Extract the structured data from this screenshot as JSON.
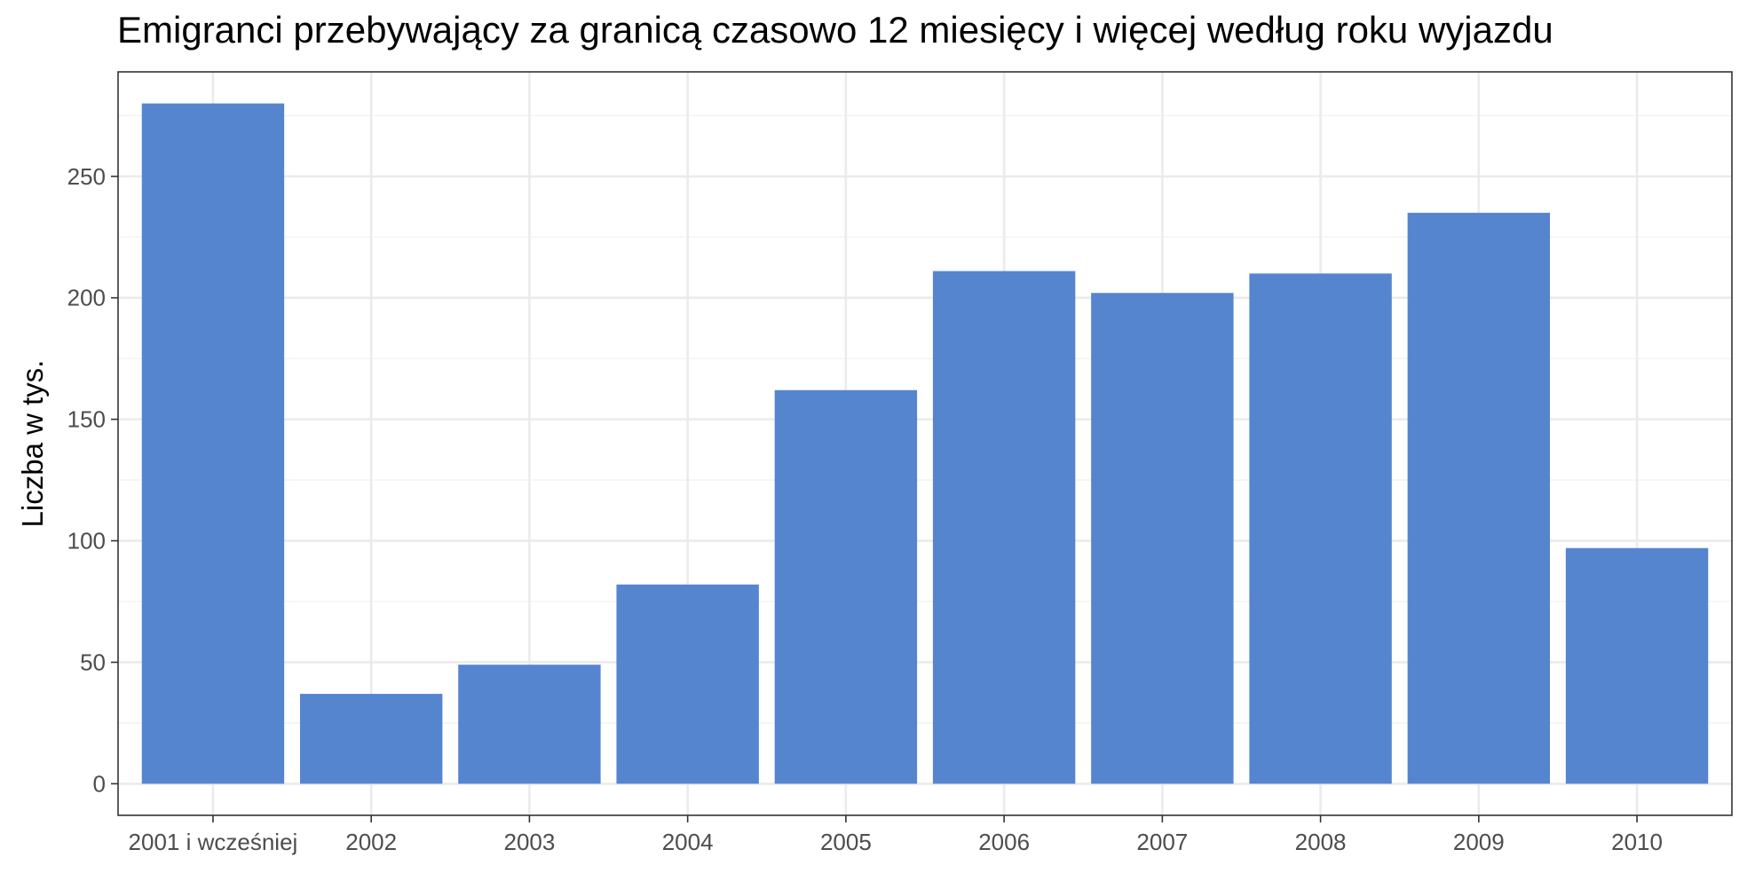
{
  "chart_data": {
    "type": "bar",
    "title": "Emigranci przebywający za granicą czasowo 12 miesięcy i więcej według roku wyjazdu",
    "xlabel": "",
    "ylabel": "Liczba w tys.",
    "categories": [
      "2001 i wcześniej",
      "2002",
      "2003",
      "2004",
      "2005",
      "2006",
      "2007",
      "2008",
      "2009",
      "2010"
    ],
    "values": [
      280,
      37,
      49,
      82,
      162,
      211,
      202,
      210,
      235,
      97
    ],
    "ylim": [
      -13,
      293
    ],
    "yticks": [
      0,
      50,
      100,
      150,
      200,
      250
    ],
    "ytick_labels": [
      "0",
      "50",
      "100",
      "150",
      "200",
      "250"
    ],
    "grid": true,
    "legend": "none",
    "colors": {
      "bar": "#5585CF",
      "panel_border": "#333333",
      "grid_major": "#EBEBEB",
      "grid_minor": "#F2F2F2",
      "tick_text": "#4D4D4D",
      "tick_mark": "#333333"
    }
  }
}
